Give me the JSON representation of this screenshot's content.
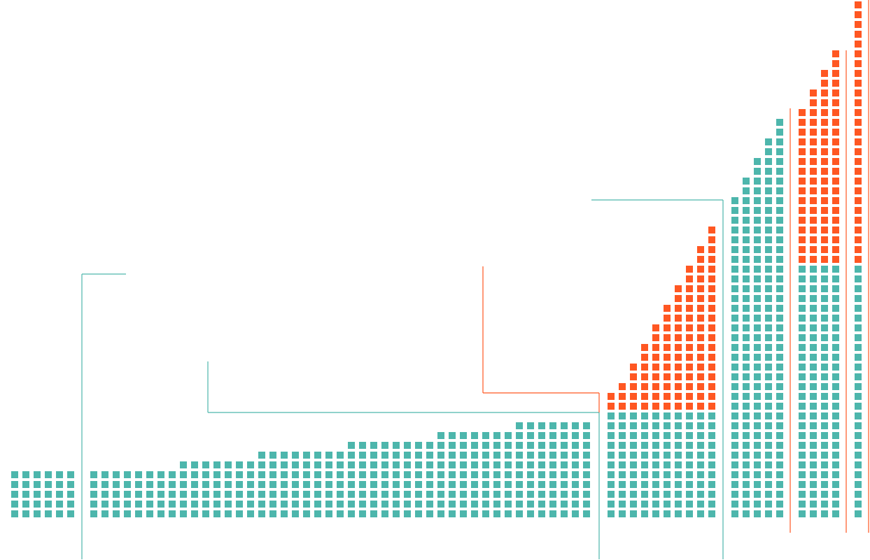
{
  "colors": {
    "teal": "#4db6ac",
    "orange": "#ff5722",
    "background": "#ffffff"
  },
  "chart_data": {
    "type": "unit-column",
    "title": "",
    "xlabel": "",
    "ylabel": "",
    "unit_per_square": 1,
    "series": [
      {
        "name": "teal",
        "color": "#4db6ac"
      },
      {
        "name": "orange",
        "color": "#ff5722"
      }
    ],
    "groups": [
      {
        "id": "g1",
        "leader_color": "teal",
        "columns": [
          {
            "teal": 5,
            "orange": 0
          },
          {
            "teal": 5,
            "orange": 0
          },
          {
            "teal": 5,
            "orange": 0
          },
          {
            "teal": 5,
            "orange": 0
          },
          {
            "teal": 5,
            "orange": 0
          },
          {
            "teal": 5,
            "orange": 0
          }
        ]
      },
      {
        "id": "g2",
        "leader_color": "teal",
        "columns": [
          {
            "teal": 5,
            "orange": 0
          },
          {
            "teal": 5,
            "orange": 0
          },
          {
            "teal": 5,
            "orange": 0
          },
          {
            "teal": 5,
            "orange": 0
          },
          {
            "teal": 5,
            "orange": 0
          },
          {
            "teal": 5,
            "orange": 0
          },
          {
            "teal": 5,
            "orange": 0
          },
          {
            "teal": 5,
            "orange": 0
          },
          {
            "teal": 6,
            "orange": 0
          },
          {
            "teal": 6,
            "orange": 0
          },
          {
            "teal": 6,
            "orange": 0
          },
          {
            "teal": 6,
            "orange": 0
          },
          {
            "teal": 6,
            "orange": 0
          },
          {
            "teal": 6,
            "orange": 0
          },
          {
            "teal": 6,
            "orange": 0
          },
          {
            "teal": 7,
            "orange": 0
          },
          {
            "teal": 7,
            "orange": 0
          },
          {
            "teal": 7,
            "orange": 0
          },
          {
            "teal": 7,
            "orange": 0
          },
          {
            "teal": 7,
            "orange": 0
          },
          {
            "teal": 7,
            "orange": 0
          },
          {
            "teal": 7,
            "orange": 0
          },
          {
            "teal": 7,
            "orange": 0
          },
          {
            "teal": 8,
            "orange": 0
          },
          {
            "teal": 8,
            "orange": 0
          },
          {
            "teal": 8,
            "orange": 0
          },
          {
            "teal": 8,
            "orange": 0
          },
          {
            "teal": 8,
            "orange": 0
          },
          {
            "teal": 8,
            "orange": 0
          },
          {
            "teal": 8,
            "orange": 0
          },
          {
            "teal": 8,
            "orange": 0
          },
          {
            "teal": 9,
            "orange": 0
          },
          {
            "teal": 9,
            "orange": 0
          },
          {
            "teal": 9,
            "orange": 0
          },
          {
            "teal": 9,
            "orange": 0
          },
          {
            "teal": 9,
            "orange": 0
          },
          {
            "teal": 9,
            "orange": 0
          },
          {
            "teal": 9,
            "orange": 0
          },
          {
            "teal": 10,
            "orange": 0
          },
          {
            "teal": 10,
            "orange": 0
          },
          {
            "teal": 10,
            "orange": 0
          },
          {
            "teal": 10,
            "orange": 0
          },
          {
            "teal": 10,
            "orange": 0
          },
          {
            "teal": 10,
            "orange": 0
          },
          {
            "teal": 10,
            "orange": 0
          }
        ]
      },
      {
        "id": "g3",
        "leader_color": "orange",
        "columns": [
          {
            "teal": 11,
            "orange": 2
          },
          {
            "teal": 11,
            "orange": 3
          },
          {
            "teal": 11,
            "orange": 5
          },
          {
            "teal": 11,
            "orange": 7
          },
          {
            "teal": 11,
            "orange": 9
          },
          {
            "teal": 11,
            "orange": 11
          },
          {
            "teal": 11,
            "orange": 13
          },
          {
            "teal": 11,
            "orange": 15
          },
          {
            "teal": 11,
            "orange": 17
          },
          {
            "teal": 11,
            "orange": 19
          }
        ]
      },
      {
        "id": "g4",
        "leader_color": "teal",
        "columns": [
          {
            "teal": 33,
            "orange": 0
          },
          {
            "teal": 35,
            "orange": 0
          },
          {
            "teal": 37,
            "orange": 0
          },
          {
            "teal": 39,
            "orange": 0
          },
          {
            "teal": 41,
            "orange": 0
          }
        ]
      },
      {
        "id": "g5",
        "leader_color": "orange",
        "columns": [
          {
            "teal": 26,
            "orange": 16
          },
          {
            "teal": 26,
            "orange": 18
          },
          {
            "teal": 26,
            "orange": 20
          },
          {
            "teal": 26,
            "orange": 22
          }
        ]
      },
      {
        "id": "g6",
        "leader_color": "orange",
        "columns": [
          {
            "teal": 26,
            "orange": 27
          }
        ]
      }
    ]
  }
}
